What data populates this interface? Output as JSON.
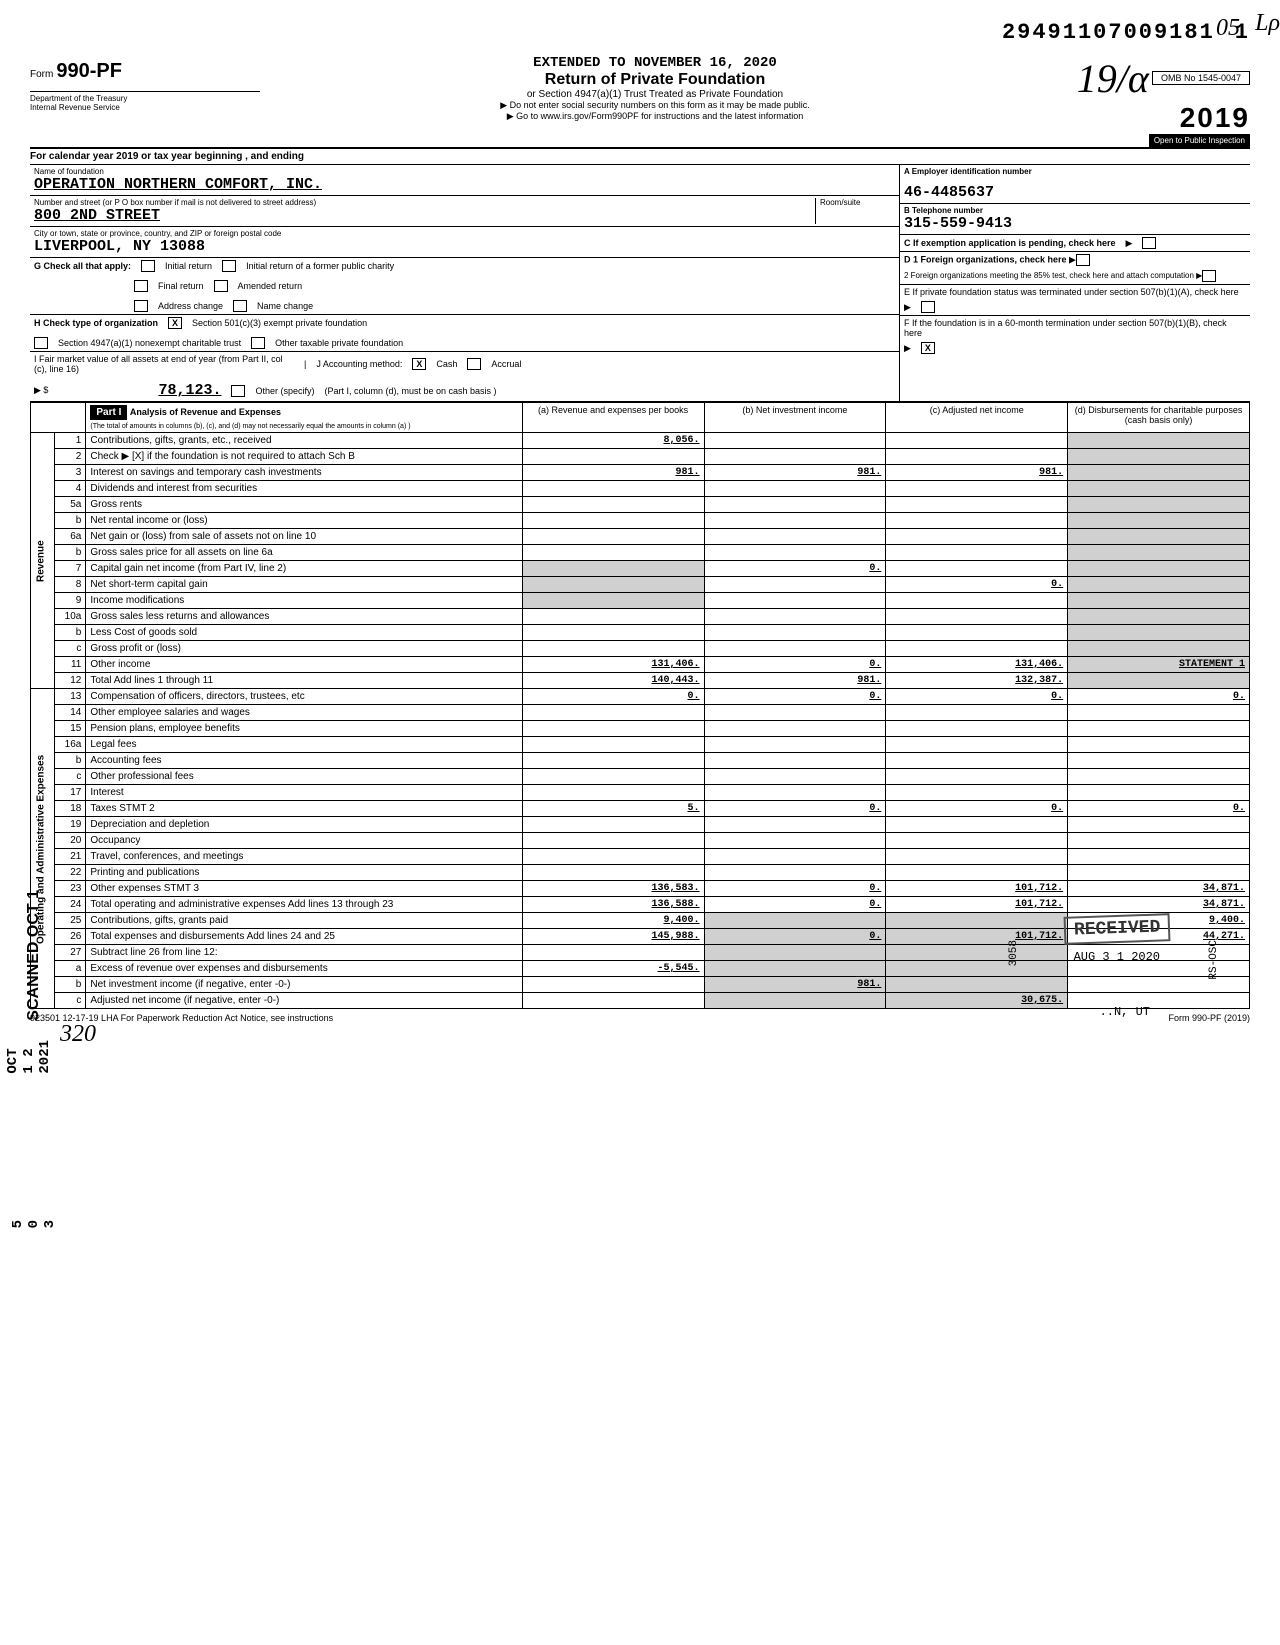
{
  "dln": "29491107009181",
  "dln_page": "1",
  "extended": "EXTENDED TO NOVEMBER 16, 2020",
  "form": {
    "prefix": "Form",
    "number": "990-PF",
    "dept1": "Department of the Treasury",
    "dept2": "Internal Revenue Service"
  },
  "title": {
    "main": "Return of Private Foundation",
    "sub": "or Section 4947(a)(1) Trust Treated as Private Foundation",
    "note1": "▶ Do not enter social security numbers on this form as it may be made public.",
    "note2": "▶ Go to www.irs.gov/Form990PF for instructions and the latest information"
  },
  "omb": "OMB No 1545-0047",
  "year": "2019",
  "open": "Open to Public Inspection",
  "cal_year": "For calendar year 2019 or tax year beginning                              , and ending",
  "name_label": "Name of foundation",
  "name": "OPERATION NORTHERN COMFORT, INC.",
  "addr_label": "Number and street (or P O box number if mail is not delivered to street address)",
  "addr": "800 2ND STREET",
  "room_label": "Room/suite",
  "city_label": "City or town, state or province, country, and ZIP or foreign postal code",
  "city": "LIVERPOOL, NY   13088",
  "a_label": "A Employer identification number",
  "ein": "46-4485637",
  "b_label": "B Telephone number",
  "phone": "315-559-9413",
  "c_label": "C If exemption application is pending, check here",
  "g_label": "G Check all that apply:",
  "g_opts": [
    "Initial return",
    "Initial return of a former public charity",
    "Final return",
    "Amended return",
    "Address change",
    "Name change"
  ],
  "d1": "D 1 Foreign organizations, check here",
  "d2": "2 Foreign organizations meeting the 85% test, check here and attach computation",
  "h_label": "H Check type of organization",
  "h_opts": [
    "Section 501(c)(3) exempt private foundation",
    "Section 4947(a)(1) nonexempt charitable trust",
    "Other taxable private foundation"
  ],
  "e_label": "E If private foundation status was terminated under section 507(b)(1)(A), check here",
  "i_label": "I Fair market value of all assets at end of year (from Part II, col (c), line 16)",
  "i_value": "78,123.",
  "j_label": "J Accounting method:",
  "j_opts": [
    "Cash",
    "Accrual",
    "Other (specify)"
  ],
  "j_note": "(Part I, column (d), must be on cash basis )",
  "f_label": "F If the foundation is in a 60-month termination under section 507(b)(1)(B), check here",
  "part1": {
    "header": "Part I",
    "title": "Analysis of Revenue and Expenses",
    "subtitle": "(The total of amounts in columns (b), (c), and (d) may not necessarily equal the amounts in column (a) )",
    "cols": [
      "(a) Revenue and expenses per books",
      "(b) Net investment income",
      "(c) Adjusted net income",
      "(d) Disbursements for charitable purposes (cash basis only)"
    ]
  },
  "rows": [
    {
      "n": "1",
      "d": "Contributions, gifts, grants, etc., received",
      "a": "8,056.",
      "b": "",
      "c": "",
      "dd": ""
    },
    {
      "n": "2",
      "d": "Check ▶ [X] if the foundation is not required to attach Sch B",
      "a": "",
      "b": "",
      "c": "",
      "dd": ""
    },
    {
      "n": "3",
      "d": "Interest on savings and temporary cash investments",
      "a": "981.",
      "b": "981.",
      "c": "981.",
      "dd": ""
    },
    {
      "n": "4",
      "d": "Dividends and interest from securities",
      "a": "",
      "b": "",
      "c": "",
      "dd": ""
    },
    {
      "n": "5a",
      "d": "Gross rents",
      "a": "",
      "b": "",
      "c": "",
      "dd": ""
    },
    {
      "n": "b",
      "d": "Net rental income or (loss)",
      "a": "",
      "b": "",
      "c": "",
      "dd": ""
    },
    {
      "n": "6a",
      "d": "Net gain or (loss) from sale of assets not on line 10",
      "a": "",
      "b": "",
      "c": "",
      "dd": ""
    },
    {
      "n": "b",
      "d": "Gross sales price for all assets on line 6a",
      "a": "",
      "b": "",
      "c": "",
      "dd": ""
    },
    {
      "n": "7",
      "d": "Capital gain net income (from Part IV, line 2)",
      "a": "",
      "b": "0.",
      "c": "",
      "dd": ""
    },
    {
      "n": "8",
      "d": "Net short-term capital gain",
      "a": "",
      "b": "",
      "c": "0.",
      "dd": ""
    },
    {
      "n": "9",
      "d": "Income modifications",
      "a": "",
      "b": "",
      "c": "",
      "dd": ""
    },
    {
      "n": "10a",
      "d": "Gross sales less returns and allowances",
      "a": "",
      "b": "",
      "c": "",
      "dd": ""
    },
    {
      "n": "b",
      "d": "Less Cost of goods sold",
      "a": "",
      "b": "",
      "c": "",
      "dd": ""
    },
    {
      "n": "c",
      "d": "Gross profit or (loss)",
      "a": "",
      "b": "",
      "c": "",
      "dd": ""
    },
    {
      "n": "11",
      "d": "Other income",
      "a": "131,406.",
      "b": "0.",
      "c": "131,406.",
      "dd": "STATEMENT 1"
    },
    {
      "n": "12",
      "d": "Total Add lines 1 through 11",
      "a": "140,443.",
      "b": "981.",
      "c": "132,387.",
      "dd": ""
    },
    {
      "n": "13",
      "d": "Compensation of officers, directors, trustees, etc",
      "a": "0.",
      "b": "0.",
      "c": "0.",
      "dd": "0."
    },
    {
      "n": "14",
      "d": "Other employee salaries and wages",
      "a": "",
      "b": "",
      "c": "",
      "dd": ""
    },
    {
      "n": "15",
      "d": "Pension plans, employee benefits",
      "a": "",
      "b": "",
      "c": "",
      "dd": ""
    },
    {
      "n": "16a",
      "d": "Legal fees",
      "a": "",
      "b": "",
      "c": "",
      "dd": ""
    },
    {
      "n": "b",
      "d": "Accounting fees",
      "a": "",
      "b": "",
      "c": "",
      "dd": ""
    },
    {
      "n": "c",
      "d": "Other professional fees",
      "a": "",
      "b": "",
      "c": "",
      "dd": ""
    },
    {
      "n": "17",
      "d": "Interest",
      "a": "",
      "b": "",
      "c": "",
      "dd": ""
    },
    {
      "n": "18",
      "d": "Taxes                          STMT 2",
      "a": "5.",
      "b": "0.",
      "c": "0.",
      "dd": "0."
    },
    {
      "n": "19",
      "d": "Depreciation and depletion",
      "a": "",
      "b": "",
      "c": "",
      "dd": ""
    },
    {
      "n": "20",
      "d": "Occupancy",
      "a": "",
      "b": "",
      "c": "",
      "dd": ""
    },
    {
      "n": "21",
      "d": "Travel, conferences, and meetings",
      "a": "",
      "b": "",
      "c": "",
      "dd": ""
    },
    {
      "n": "22",
      "d": "Printing and publications",
      "a": "",
      "b": "",
      "c": "",
      "dd": ""
    },
    {
      "n": "23",
      "d": "Other expenses              STMT 3",
      "a": "136,583.",
      "b": "0.",
      "c": "101,712.",
      "dd": "34,871."
    },
    {
      "n": "24",
      "d": "Total operating and administrative expenses Add lines 13 through 23",
      "a": "136,588.",
      "b": "0.",
      "c": "101,712.",
      "dd": "34,871."
    },
    {
      "n": "25",
      "d": "Contributions, gifts, grants paid",
      "a": "9,400.",
      "b": "",
      "c": "",
      "dd": "9,400."
    },
    {
      "n": "26",
      "d": "Total expenses and disbursements Add lines 24 and 25",
      "a": "145,988.",
      "b": "0.",
      "c": "101,712.",
      "dd": "44,271."
    },
    {
      "n": "27",
      "d": "Subtract line 26 from line 12:",
      "a": "",
      "b": "",
      "c": "",
      "dd": ""
    },
    {
      "n": "a",
      "d": "Excess of revenue over expenses and disbursements",
      "a": "-5,545.",
      "b": "",
      "c": "",
      "dd": ""
    },
    {
      "n": "b",
      "d": "Net investment income (if negative, enter -0-)",
      "a": "",
      "b": "981.",
      "c": "",
      "dd": ""
    },
    {
      "n": "c",
      "d": "Adjusted net income (if negative, enter -0-)",
      "a": "",
      "b": "",
      "c": "30,675.",
      "dd": ""
    }
  ],
  "revenue_label": "Revenue",
  "expenses_label": "Operating and Administrative Expenses",
  "footer_left": "923501 12-17-19   LHA  For Paperwork Reduction Act Notice, see instructions",
  "footer_right": "Form 990-PF (2019)",
  "stamp_received": "RECEIVED",
  "stamp_date": "AUG 3 1 2020",
  "stamp_scanned": "SCANNED OCT 1",
  "stamp_side": "OCT 1 2 2021",
  "stamp_side2": "5 0 3",
  "hand_year": "19/α",
  "hand_init": "Lρ",
  "hand_05": "05",
  "hand_bottom": "320"
}
